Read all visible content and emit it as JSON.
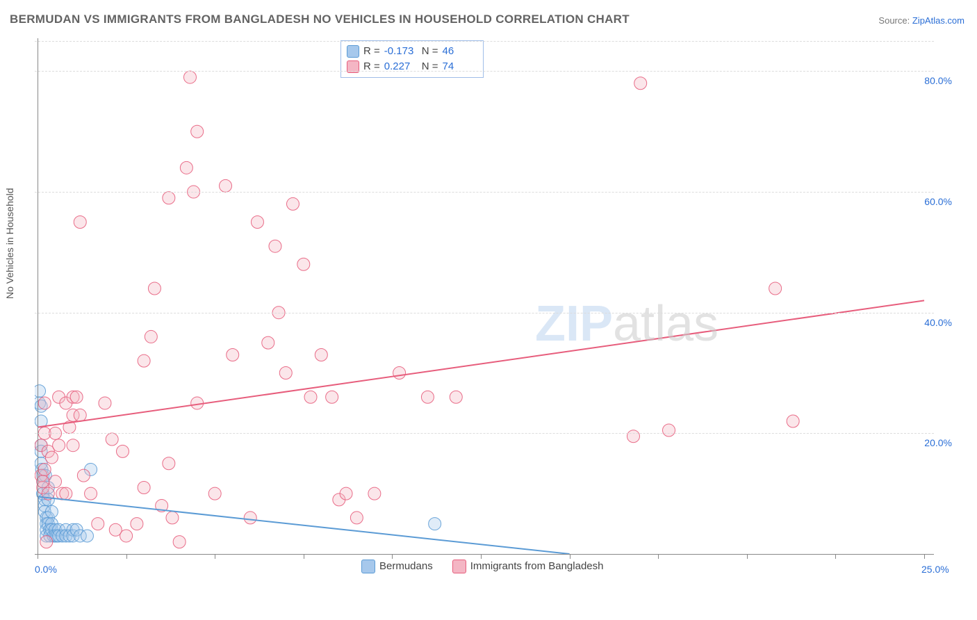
{
  "title": "BERMUDAN VS IMMIGRANTS FROM BANGLADESH NO VEHICLES IN HOUSEHOLD CORRELATION CHART",
  "source_label": "Source:",
  "source_name": "ZipAtlas.com",
  "watermark_a": "ZIP",
  "watermark_b": "atlas",
  "y_axis_label": "No Vehicles in Household",
  "chart": {
    "type": "scatter",
    "background_color": "#ffffff",
    "grid_color": "#dcdcdc",
    "axis_color": "#888888",
    "xlim": [
      0,
      25
    ],
    "ylim": [
      0,
      85
    ],
    "x_ticks": [
      0,
      2.5,
      5,
      7.5,
      10,
      12.5,
      15,
      17.5,
      20,
      22.5,
      25
    ],
    "x_tick_labels": {
      "0": "0.0%",
      "25": "25.0%"
    },
    "y_ticks": [
      20,
      40,
      60,
      80
    ],
    "y_tick_labels": {
      "20": "20.0%",
      "40": "40.0%",
      "60": "60.0%",
      "80": "80.0%"
    },
    "marker_radius": 9,
    "marker_opacity": 0.35,
    "marker_stroke_opacity": 0.9,
    "line_width": 2,
    "series": [
      {
        "id": "bermudans",
        "label": "Bermudans",
        "color": "#5b9bd5",
        "fill": "#a6c8ec",
        "stats": {
          "R": "-0.173",
          "N": "46"
        },
        "trend": {
          "x1": 0,
          "y1": 9.5,
          "x2": 15,
          "y2": 0
        },
        "points": [
          [
            0.05,
            27
          ],
          [
            0.05,
            25
          ],
          [
            0.1,
            24.5
          ],
          [
            0.1,
            22
          ],
          [
            0.1,
            18
          ],
          [
            0.1,
            17
          ],
          [
            0.1,
            15
          ],
          [
            0.12,
            14
          ],
          [
            0.15,
            13
          ],
          [
            0.15,
            12
          ],
          [
            0.15,
            10
          ],
          [
            0.15,
            10
          ],
          [
            0.2,
            9
          ],
          [
            0.2,
            8
          ],
          [
            0.2,
            7
          ],
          [
            0.22,
            13
          ],
          [
            0.25,
            6
          ],
          [
            0.25,
            5
          ],
          [
            0.25,
            4
          ],
          [
            0.25,
            3
          ],
          [
            0.3,
            11
          ],
          [
            0.3,
            9
          ],
          [
            0.3,
            6
          ],
          [
            0.3,
            5
          ],
          [
            0.35,
            4
          ],
          [
            0.35,
            3
          ],
          [
            0.4,
            7
          ],
          [
            0.4,
            5
          ],
          [
            0.4,
            4
          ],
          [
            0.45,
            3
          ],
          [
            0.5,
            4
          ],
          [
            0.5,
            3
          ],
          [
            0.55,
            3
          ],
          [
            0.6,
            4
          ],
          [
            0.6,
            3
          ],
          [
            0.7,
            3
          ],
          [
            0.8,
            4
          ],
          [
            0.8,
            3
          ],
          [
            0.9,
            3
          ],
          [
            1.0,
            4
          ],
          [
            1.0,
            3
          ],
          [
            1.1,
            4
          ],
          [
            1.2,
            3
          ],
          [
            1.4,
            3
          ],
          [
            1.5,
            14
          ],
          [
            11.2,
            5
          ]
        ]
      },
      {
        "id": "bangladesh",
        "label": "Immigrants from Bangladesh",
        "color": "#e75d7c",
        "fill": "#f4b6c4",
        "stats": {
          "R": "0.227",
          "N": "74"
        },
        "trend": {
          "x1": 0,
          "y1": 21,
          "x2": 25,
          "y2": 42
        },
        "points": [
          [
            0.1,
            18
          ],
          [
            0.1,
            13
          ],
          [
            0.15,
            11
          ],
          [
            0.15,
            12
          ],
          [
            0.2,
            14
          ],
          [
            0.2,
            20
          ],
          [
            0.2,
            25
          ],
          [
            0.25,
            2
          ],
          [
            0.3,
            10
          ],
          [
            0.3,
            17
          ],
          [
            0.4,
            16
          ],
          [
            0.5,
            12
          ],
          [
            0.5,
            20
          ],
          [
            0.6,
            26
          ],
          [
            0.6,
            18
          ],
          [
            0.7,
            10
          ],
          [
            0.8,
            25
          ],
          [
            0.8,
            10
          ],
          [
            0.9,
            21
          ],
          [
            1.0,
            26
          ],
          [
            1.0,
            23
          ],
          [
            1.0,
            18
          ],
          [
            1.1,
            26
          ],
          [
            1.2,
            55
          ],
          [
            1.2,
            23
          ],
          [
            1.3,
            13
          ],
          [
            1.5,
            10
          ],
          [
            1.7,
            5
          ],
          [
            1.9,
            25
          ],
          [
            2.1,
            19
          ],
          [
            2.2,
            4
          ],
          [
            2.4,
            17
          ],
          [
            2.5,
            3
          ],
          [
            2.8,
            5
          ],
          [
            3.0,
            32
          ],
          [
            3.0,
            11
          ],
          [
            3.2,
            36
          ],
          [
            3.3,
            44
          ],
          [
            3.5,
            8
          ],
          [
            3.7,
            15
          ],
          [
            3.8,
            6
          ],
          [
            4.0,
            2
          ],
          [
            4.2,
            64
          ],
          [
            4.3,
            79
          ],
          [
            4.5,
            70
          ],
          [
            4.5,
            25
          ],
          [
            5.0,
            10
          ],
          [
            5.3,
            61
          ],
          [
            5.5,
            33
          ],
          [
            6.0,
            6
          ],
          [
            6.2,
            55
          ],
          [
            6.5,
            35
          ],
          [
            6.7,
            51
          ],
          [
            6.8,
            40
          ],
          [
            7.0,
            30
          ],
          [
            7.2,
            58
          ],
          [
            7.5,
            48
          ],
          [
            7.7,
            26
          ],
          [
            8.0,
            33
          ],
          [
            8.3,
            26
          ],
          [
            8.5,
            9
          ],
          [
            8.7,
            10
          ],
          [
            9.0,
            6
          ],
          [
            9.5,
            10
          ],
          [
            10.2,
            30
          ],
          [
            11.0,
            26
          ],
          [
            11.8,
            26
          ],
          [
            16.8,
            19.5
          ],
          [
            17.0,
            78
          ],
          [
            17.8,
            20.5
          ],
          [
            20.8,
            44
          ],
          [
            21.3,
            22
          ],
          [
            4.4,
            60
          ],
          [
            3.7,
            59
          ]
        ]
      }
    ]
  },
  "stats_box": {
    "rows": [
      {
        "swatch_fill": "#a6c8ec",
        "swatch_border": "#5b9bd5",
        "r_label": "R =",
        "r": "-0.173",
        "n_label": "N =",
        "n": "46"
      },
      {
        "swatch_fill": "#f4b6c4",
        "swatch_border": "#e75d7c",
        "r_label": "R =",
        "r": "0.227",
        "n_label": "N =",
        "n": "74"
      }
    ]
  },
  "legend": [
    {
      "swatch_fill": "#a6c8ec",
      "swatch_border": "#5b9bd5",
      "label": "Bermudans"
    },
    {
      "swatch_fill": "#f4b6c4",
      "swatch_border": "#e75d7c",
      "label": "Immigrants from Bangladesh"
    }
  ]
}
